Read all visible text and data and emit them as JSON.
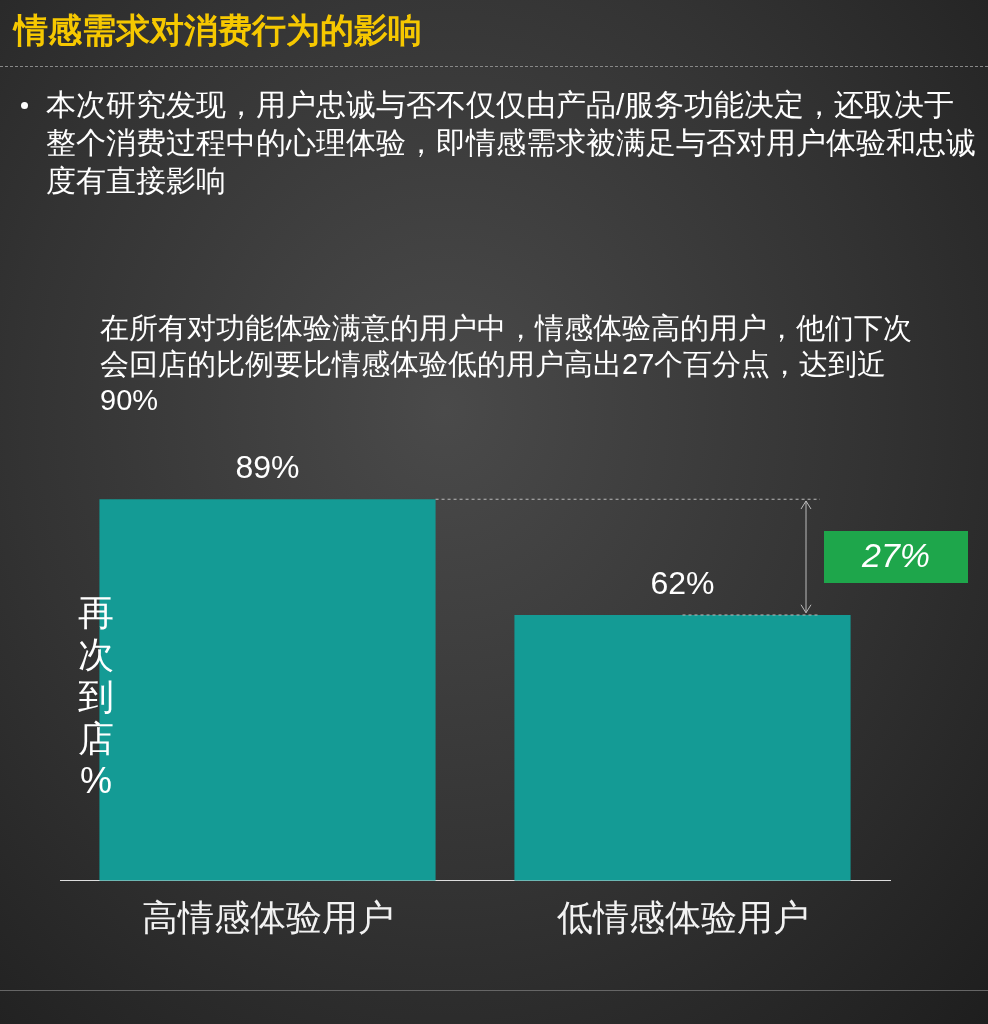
{
  "chart_data": {
    "type": "bar",
    "title": "情感需求对消费行为的影响",
    "subtitle": "本次研究发现，用户忠诚与否不仅仅由产品/服务功能决定，还取决于整个消费过程中的心理体验，即情感需求被满足与否对用户体验和忠诚度有直接影响",
    "annotations": [
      "在所有对功能体验满意的用户中，情感体验高的用户，他们下次会回店的比例要比情感体验低的用户高出27个百分点，达到近90%",
      "27%"
    ],
    "ylabel": "再次到店%",
    "categories": [
      "高情感体验用户",
      "低情感体验用户"
    ],
    "values": [
      89,
      62
    ],
    "value_labels": [
      "89%",
      "62%"
    ],
    "color": "#149b95",
    "ref_lines": [
      {
        "axis": "y",
        "value": 89,
        "color": "#bbbbbb",
        "line_style": "dashed"
      },
      {
        "axis": "y",
        "value": 62,
        "color": "#bbbbbb",
        "line_style": "dashed"
      }
    ],
    "tick_labels": "x",
    "grid": false,
    "legend": false
  }
}
